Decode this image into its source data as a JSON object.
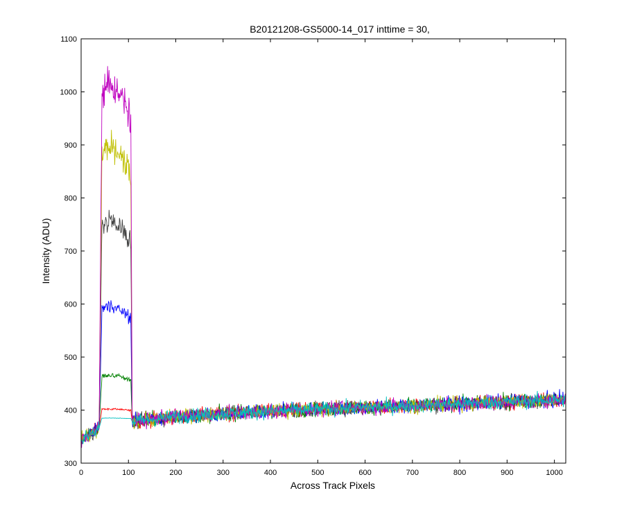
{
  "chart_data": {
    "type": "line",
    "title": "B20121208-GS5000-14_017 inttime = 30,",
    "xlabel": "Across Track Pixels",
    "ylabel": "Intensity (ADU)",
    "xlim": [
      0,
      1024
    ],
    "ylim": [
      300,
      1100
    ],
    "xticks": [
      0,
      100,
      200,
      300,
      400,
      500,
      600,
      700,
      800,
      900,
      1000
    ],
    "yticks": [
      300,
      400,
      500,
      600,
      700,
      800,
      900,
      1000,
      1100
    ],
    "grid": false,
    "legend": "none",
    "signal_region": [
      38,
      108
    ],
    "noise_amplitude": 15,
    "baseline": {
      "x": [
        0,
        50,
        200,
        400,
        600,
        800,
        1024
      ],
      "y": [
        345,
        372,
        388,
        398,
        405,
        412,
        420
      ]
    },
    "series": [
      {
        "color": "#ff0000",
        "plateau": 402,
        "peak_x": 60
      },
      {
        "color": "#008000",
        "plateau": 465,
        "peak_x": 60
      },
      {
        "color": "#0000ff",
        "plateau": 595,
        "peak_x": 60
      },
      {
        "color": "#404040",
        "plateau": 755,
        "peak_x": 60
      },
      {
        "color": "#bfbf00",
        "plateau": 890,
        "peak_x": 60
      },
      {
        "color": "#bf00bf",
        "plateau": 1010,
        "peak_x": 60
      },
      {
        "color": "#00bfbf",
        "plateau": 385,
        "peak_x": 60
      }
    ]
  }
}
